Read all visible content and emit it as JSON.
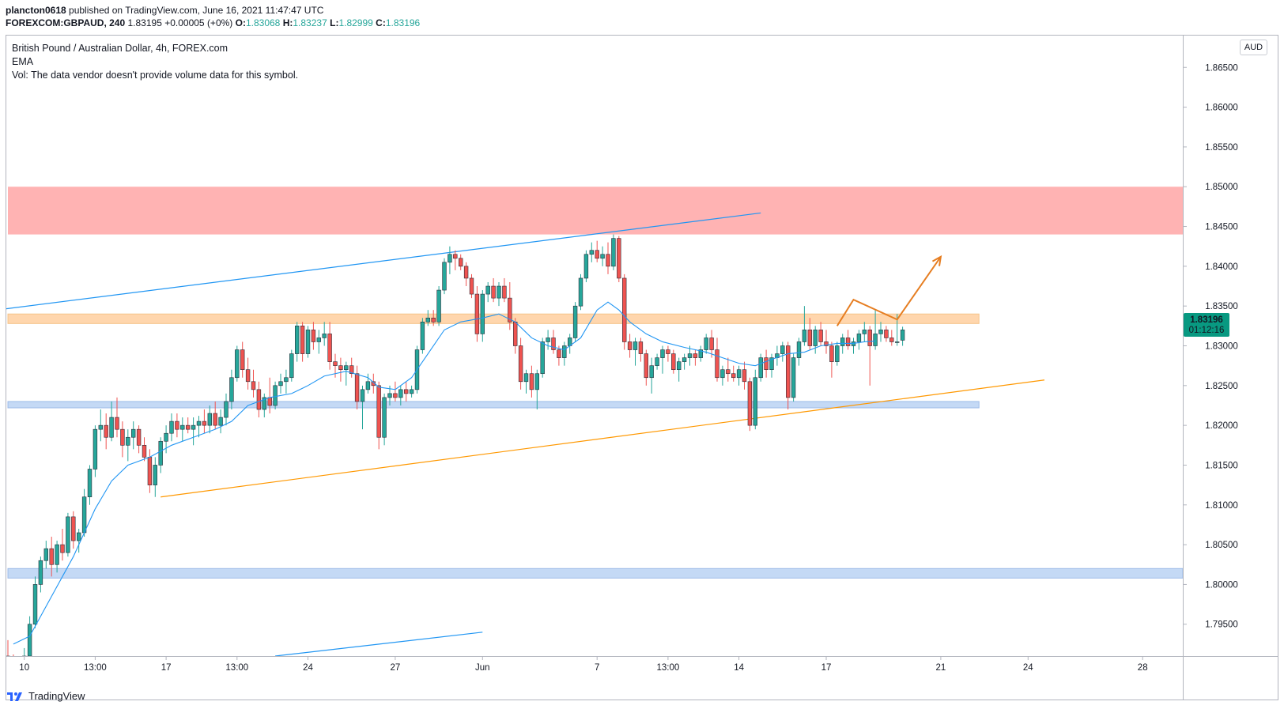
{
  "publish_line": {
    "user": "plancton0618",
    "text": " published on TradingView.com, June 16, 2021 11:47:47 UTC"
  },
  "ohlc": {
    "symbol": "FOREXCOM:GBPAUD, 240",
    "last": "1.83195",
    "change": "+0.00005 (+0%)",
    "o_label": "O:",
    "o": "1.83068",
    "h_label": "H:",
    "h": "1.83237",
    "l_label": "L:",
    "l": "1.82999",
    "c_label": "C:",
    "c": "1.83196"
  },
  "legend": {
    "title": "British Pound / Australian Dollar, 4h, FOREX.com",
    "ema": "EMA",
    "vol": "Vol: The data vendor doesn't provide volume data for this symbol."
  },
  "currency_button": "AUD",
  "price_tag": {
    "price": "1.83196",
    "countdown": "01:12:16",
    "color": "#089981"
  },
  "footer": {
    "brand": "TradingView"
  },
  "colors": {
    "up": "#26a69a",
    "down": "#ef5350",
    "wick": "#5d606b",
    "ema": "#2196f3",
    "resistance_zone": "#ffb3b3",
    "pivot_zone": "#ffd6ad",
    "support_zone": "#c4d9f5",
    "trendline_blue": "#2196f3",
    "trendline_orange": "#ff9800",
    "projection": "#e67e22"
  },
  "chart_data": {
    "type": "candlestick",
    "symbol": "GBPAUD",
    "timeframe": "4h",
    "ylim": [
      1.791,
      1.869
    ],
    "yticks": [
      "1.86500",
      "1.86000",
      "1.85500",
      "1.85000",
      "1.84500",
      "1.84000",
      "1.83500",
      "1.83000",
      "1.82500",
      "1.82000",
      "1.81500",
      "1.81000",
      "1.80500",
      "1.80000",
      "1.79500"
    ],
    "xticks": [
      {
        "label": "10",
        "bar": 3
      },
      {
        "label": "13:00",
        "bar": 16
      },
      {
        "label": "17",
        "bar": 29
      },
      {
        "label": "13:00",
        "bar": 42
      },
      {
        "label": "24",
        "bar": 55
      },
      {
        "label": "27",
        "bar": 71
      },
      {
        "label": "Jun",
        "bar": 87
      },
      {
        "label": "7",
        "bar": 108
      },
      {
        "label": "13:00",
        "bar": 121
      },
      {
        "label": "14",
        "bar": 134
      },
      {
        "label": "17",
        "bar": 150
      },
      {
        "label": "21",
        "bar": 171
      },
      {
        "label": "24",
        "bar": 187
      },
      {
        "label": "28",
        "bar": 208
      }
    ],
    "candles": [
      [
        1.791,
        1.793,
        1.7895,
        1.79
      ],
      [
        1.79,
        1.7912,
        1.788,
        1.789
      ],
      [
        1.789,
        1.7905,
        1.788,
        1.79
      ],
      [
        1.79,
        1.792,
        1.789,
        1.791
      ],
      [
        1.791,
        1.796,
        1.7905,
        1.795
      ],
      [
        1.795,
        1.801,
        1.7945,
        1.8
      ],
      [
        1.8,
        1.8035,
        1.799,
        1.803
      ],
      [
        1.803,
        1.8055,
        1.802,
        1.8045
      ],
      [
        1.8045,
        1.806,
        1.801,
        1.8025
      ],
      [
        1.8025,
        1.8055,
        1.8015,
        1.805
      ],
      [
        1.805,
        1.807,
        1.803,
        1.804
      ],
      [
        1.804,
        1.809,
        1.8035,
        1.8085
      ],
      [
        1.8085,
        1.8092,
        1.8045,
        1.8055
      ],
      [
        1.8055,
        1.807,
        1.804,
        1.8065
      ],
      [
        1.8065,
        1.812,
        1.806,
        1.811
      ],
      [
        1.811,
        1.815,
        1.81,
        1.8145
      ],
      [
        1.8145,
        1.82,
        1.8135,
        1.8195
      ],
      [
        1.8195,
        1.822,
        1.818,
        1.82
      ],
      [
        1.82,
        1.8215,
        1.817,
        1.8185
      ],
      [
        1.8185,
        1.823,
        1.818,
        1.821
      ],
      [
        1.821,
        1.8235,
        1.8185,
        1.8195
      ],
      [
        1.8195,
        1.8205,
        1.816,
        1.8175
      ],
      [
        1.8175,
        1.8195,
        1.8155,
        1.8185
      ],
      [
        1.8185,
        1.8205,
        1.817,
        1.8195
      ],
      [
        1.8195,
        1.82,
        1.8165,
        1.8175
      ],
      [
        1.8175,
        1.8185,
        1.8155,
        1.816
      ],
      [
        1.816,
        1.817,
        1.8115,
        1.8125
      ],
      [
        1.8125,
        1.816,
        1.811,
        1.815
      ],
      [
        1.815,
        1.8185,
        1.814,
        1.818
      ],
      [
        1.818,
        1.82,
        1.8165,
        1.819
      ],
      [
        1.819,
        1.8215,
        1.818,
        1.8205
      ],
      [
        1.8205,
        1.8215,
        1.8185,
        1.8195
      ],
      [
        1.8195,
        1.821,
        1.818,
        1.82
      ],
      [
        1.82,
        1.821,
        1.819,
        1.8195
      ],
      [
        1.8195,
        1.821,
        1.8175,
        1.82
      ],
      [
        1.82,
        1.8212,
        1.8185,
        1.8205
      ],
      [
        1.8205,
        1.822,
        1.819,
        1.82
      ],
      [
        1.82,
        1.8225,
        1.819,
        1.8215
      ],
      [
        1.8215,
        1.823,
        1.8195,
        1.82
      ],
      [
        1.82,
        1.822,
        1.819,
        1.821
      ],
      [
        1.821,
        1.824,
        1.82,
        1.823
      ],
      [
        1.823,
        1.827,
        1.822,
        1.826
      ],
      [
        1.826,
        1.83,
        1.8255,
        1.8295
      ],
      [
        1.8295,
        1.8305,
        1.826,
        1.827
      ],
      [
        1.827,
        1.8285,
        1.8245,
        1.8255
      ],
      [
        1.8255,
        1.827,
        1.8235,
        1.8245
      ],
      [
        1.8245,
        1.8255,
        1.821,
        1.822
      ],
      [
        1.822,
        1.824,
        1.821,
        1.8235
      ],
      [
        1.8235,
        1.826,
        1.8215,
        1.8225
      ],
      [
        1.8225,
        1.8255,
        1.822,
        1.825
      ],
      [
        1.825,
        1.8265,
        1.824,
        1.8255
      ],
      [
        1.8255,
        1.827,
        1.824,
        1.826
      ],
      [
        1.826,
        1.8295,
        1.8255,
        1.829
      ],
      [
        1.829,
        1.833,
        1.828,
        1.8325
      ],
      [
        1.8325,
        1.833,
        1.828,
        1.829
      ],
      [
        1.829,
        1.8325,
        1.8285,
        1.832
      ],
      [
        1.832,
        1.833,
        1.8295,
        1.8305
      ],
      [
        1.8305,
        1.832,
        1.829,
        1.831
      ],
      [
        1.831,
        1.833,
        1.83,
        1.8315
      ],
      [
        1.8315,
        1.833,
        1.827,
        1.828
      ],
      [
        1.828,
        1.829,
        1.826,
        1.8275
      ],
      [
        1.8275,
        1.8285,
        1.8255,
        1.827
      ],
      [
        1.827,
        1.828,
        1.825,
        1.8275
      ],
      [
        1.8275,
        1.8285,
        1.826,
        1.8265
      ],
      [
        1.8265,
        1.8275,
        1.822,
        1.823
      ],
      [
        1.823,
        1.825,
        1.8195,
        1.8245
      ],
      [
        1.8245,
        1.8265,
        1.824,
        1.8255
      ],
      [
        1.8255,
        1.8265,
        1.824,
        1.825
      ],
      [
        1.825,
        1.8255,
        1.817,
        1.8185
      ],
      [
        1.8185,
        1.824,
        1.8175,
        1.8235
      ],
      [
        1.8235,
        1.825,
        1.8225,
        1.824
      ],
      [
        1.824,
        1.8255,
        1.823,
        1.8235
      ],
      [
        1.8235,
        1.825,
        1.8225,
        1.8245
      ],
      [
        1.8245,
        1.8255,
        1.823,
        1.824
      ],
      [
        1.824,
        1.825,
        1.8235,
        1.8245
      ],
      [
        1.8245,
        1.83,
        1.824,
        1.8295
      ],
      [
        1.8295,
        1.8335,
        1.829,
        1.833
      ],
      [
        1.833,
        1.8345,
        1.8325,
        1.8335
      ],
      [
        1.8335,
        1.8345,
        1.8325,
        1.833
      ],
      [
        1.833,
        1.8375,
        1.8325,
        1.837
      ],
      [
        1.837,
        1.841,
        1.8365,
        1.8405
      ],
      [
        1.8405,
        1.8425,
        1.839,
        1.8415
      ],
      [
        1.8415,
        1.842,
        1.8395,
        1.841
      ],
      [
        1.841,
        1.8415,
        1.8395,
        1.84
      ],
      [
        1.84,
        1.8405,
        1.8375,
        1.8385
      ],
      [
        1.8385,
        1.839,
        1.836,
        1.8365
      ],
      [
        1.8365,
        1.8375,
        1.8305,
        1.8315
      ],
      [
        1.8315,
        1.837,
        1.8305,
        1.8365
      ],
      [
        1.8365,
        1.838,
        1.8355,
        1.8375
      ],
      [
        1.8375,
        1.8385,
        1.8355,
        1.836
      ],
      [
        1.836,
        1.838,
        1.835,
        1.8375
      ],
      [
        1.8375,
        1.8385,
        1.8355,
        1.836
      ],
      [
        1.836,
        1.838,
        1.832,
        1.833
      ],
      [
        1.833,
        1.8335,
        1.829,
        1.83
      ],
      [
        1.83,
        1.831,
        1.8245,
        1.8255
      ],
      [
        1.8255,
        1.827,
        1.824,
        1.8265
      ],
      [
        1.8265,
        1.8275,
        1.8235,
        1.8245
      ],
      [
        1.8245,
        1.827,
        1.822,
        1.8265
      ],
      [
        1.8265,
        1.831,
        1.826,
        1.8305
      ],
      [
        1.8305,
        1.832,
        1.8295,
        1.831
      ],
      [
        1.831,
        1.832,
        1.829,
        1.8295
      ],
      [
        1.8295,
        1.83,
        1.8275,
        1.8285
      ],
      [
        1.8285,
        1.8305,
        1.8275,
        1.83
      ],
      [
        1.83,
        1.8315,
        1.829,
        1.831
      ],
      [
        1.831,
        1.8355,
        1.8305,
        1.835
      ],
      [
        1.835,
        1.839,
        1.8345,
        1.8385
      ],
      [
        1.8385,
        1.842,
        1.838,
        1.8415
      ],
      [
        1.8415,
        1.843,
        1.8405,
        1.842
      ],
      [
        1.842,
        1.8432,
        1.8405,
        1.841
      ],
      [
        1.841,
        1.8425,
        1.84,
        1.8415
      ],
      [
        1.8415,
        1.843,
        1.839,
        1.84
      ],
      [
        1.84,
        1.844,
        1.8395,
        1.8435
      ],
      [
        1.8435,
        1.8438,
        1.838,
        1.8385
      ],
      [
        1.8385,
        1.839,
        1.8295,
        1.8305
      ],
      [
        1.8305,
        1.8315,
        1.8285,
        1.8295
      ],
      [
        1.8295,
        1.831,
        1.8275,
        1.8305
      ],
      [
        1.8305,
        1.831,
        1.828,
        1.829
      ],
      [
        1.829,
        1.8295,
        1.825,
        1.826
      ],
      [
        1.826,
        1.8285,
        1.824,
        1.8275
      ],
      [
        1.8275,
        1.829,
        1.827,
        1.8285
      ],
      [
        1.8285,
        1.83,
        1.8265,
        1.8295
      ],
      [
        1.8295,
        1.83,
        1.828,
        1.829
      ],
      [
        1.829,
        1.8295,
        1.8265,
        1.827
      ],
      [
        1.827,
        1.8285,
        1.8255,
        1.828
      ],
      [
        1.828,
        1.829,
        1.827,
        1.8285
      ],
      [
        1.8285,
        1.83,
        1.8275,
        1.829
      ],
      [
        1.829,
        1.8295,
        1.8275,
        1.8285
      ],
      [
        1.8285,
        1.83,
        1.828,
        1.8295
      ],
      [
        1.8295,
        1.8315,
        1.829,
        1.831
      ],
      [
        1.831,
        1.832,
        1.8285,
        1.8295
      ],
      [
        1.8295,
        1.831,
        1.8255,
        1.826
      ],
      [
        1.826,
        1.8275,
        1.825,
        1.827
      ],
      [
        1.827,
        1.8285,
        1.8255,
        1.8265
      ],
      [
        1.8265,
        1.8275,
        1.8255,
        1.826
      ],
      [
        1.826,
        1.8275,
        1.825,
        1.827
      ],
      [
        1.827,
        1.828,
        1.8245,
        1.8255
      ],
      [
        1.8255,
        1.826,
        1.8193,
        1.82
      ],
      [
        1.82,
        1.827,
        1.8195,
        1.826
      ],
      [
        1.826,
        1.829,
        1.8255,
        1.8285
      ],
      [
        1.8285,
        1.8295,
        1.826,
        1.827
      ],
      [
        1.827,
        1.829,
        1.826,
        1.8285
      ],
      [
        1.8285,
        1.83,
        1.8275,
        1.829
      ],
      [
        1.829,
        1.8305,
        1.828,
        1.83
      ],
      [
        1.83,
        1.8305,
        1.822,
        1.8235
      ],
      [
        1.8235,
        1.829,
        1.823,
        1.8285
      ],
      [
        1.8285,
        1.831,
        1.8275,
        1.8305
      ],
      [
        1.8305,
        1.835,
        1.83,
        1.832
      ],
      [
        1.832,
        1.8335,
        1.8295,
        1.83
      ],
      [
        1.83,
        1.8325,
        1.829,
        1.832
      ],
      [
        1.832,
        1.833,
        1.83,
        1.8305
      ],
      [
        1.8305,
        1.832,
        1.829,
        1.83
      ],
      [
        1.83,
        1.8305,
        1.826,
        1.828
      ],
      [
        1.828,
        1.8305,
        1.8275,
        1.83
      ],
      [
        1.83,
        1.8315,
        1.829,
        1.831
      ],
      [
        1.831,
        1.832,
        1.8295,
        1.83
      ],
      [
        1.83,
        1.831,
        1.829,
        1.8305
      ],
      [
        1.8305,
        1.832,
        1.8295,
        1.8315
      ],
      [
        1.8315,
        1.833,
        1.8305,
        1.832
      ],
      [
        1.832,
        1.8325,
        1.825,
        1.83
      ],
      [
        1.83,
        1.8345,
        1.8295,
        1.8315
      ],
      [
        1.8315,
        1.833,
        1.8305,
        1.832
      ],
      [
        1.832,
        1.8325,
        1.8305,
        1.831
      ],
      [
        1.831,
        1.832,
        1.83,
        1.8305
      ],
      [
        1.8305,
        1.834,
        1.83,
        1.8305
      ],
      [
        1.8307,
        1.8324,
        1.83,
        1.832
      ]
    ],
    "ema": [
      [
        1,
        1.7925
      ],
      [
        4,
        1.7935
      ],
      [
        8,
        1.7985
      ],
      [
        12,
        1.8035
      ],
      [
        16,
        1.8095
      ],
      [
        19,
        1.813
      ],
      [
        22,
        1.815
      ],
      [
        26,
        1.816
      ],
      [
        30,
        1.8175
      ],
      [
        34,
        1.8185
      ],
      [
        38,
        1.8195
      ],
      [
        41,
        1.8205
      ],
      [
        44,
        1.8225
      ],
      [
        48,
        1.8235
      ],
      [
        52,
        1.824
      ],
      [
        55,
        1.825
      ],
      [
        58,
        1.8262
      ],
      [
        62,
        1.8268
      ],
      [
        66,
        1.826
      ],
      [
        68,
        1.8248
      ],
      [
        71,
        1.8245
      ],
      [
        74,
        1.826
      ],
      [
        77,
        1.829
      ],
      [
        80,
        1.832
      ],
      [
        83,
        1.833
      ],
      [
        87,
        1.8335
      ],
      [
        90,
        1.834
      ],
      [
        93,
        1.833
      ],
      [
        96,
        1.831
      ],
      [
        99,
        1.83
      ],
      [
        102,
        1.8295
      ],
      [
        105,
        1.831
      ],
      [
        108,
        1.8345
      ],
      [
        110,
        1.8355
      ],
      [
        112,
        1.8345
      ],
      [
        114,
        1.833
      ],
      [
        117,
        1.8315
      ],
      [
        120,
        1.8305
      ],
      [
        124,
        1.8298
      ],
      [
        128,
        1.8292
      ],
      [
        131,
        1.8285
      ],
      [
        134,
        1.8278
      ],
      [
        137,
        1.8275
      ],
      [
        140,
        1.8283
      ],
      [
        143,
        1.829
      ],
      [
        146,
        1.8292
      ],
      [
        149,
        1.83
      ],
      [
        152,
        1.8303
      ],
      [
        155,
        1.8303
      ],
      [
        157,
        1.8305
      ],
      [
        159,
        1.8306
      ]
    ],
    "zones": [
      {
        "name": "resistance",
        "y1": 1.844,
        "y2": 1.85,
        "bar_start": 0,
        "bar_end": 999
      },
      {
        "name": "pivot",
        "y1": 1.8328,
        "y2": 1.834,
        "bar_start": 0,
        "bar_end": 178
      },
      {
        "name": "support",
        "y1": 1.8222,
        "y2": 1.823,
        "bar_start": 0,
        "bar_end": 178
      },
      {
        "name": "support-low",
        "y1": 1.8008,
        "y2": 1.802,
        "bar_start": 0,
        "bar_end": 999
      }
    ],
    "trendlines": [
      {
        "name": "upper-channel",
        "color": "#2196f3",
        "points": [
          [
            -1,
            1.8346
          ],
          [
            138,
            1.8467
          ]
        ]
      },
      {
        "name": "lower-channel",
        "color": "#2196f3",
        "points": [
          [
            49,
            1.791
          ],
          [
            87,
            1.794
          ]
        ]
      },
      {
        "name": "ascending-support",
        "color": "#ff9800",
        "points": [
          [
            28,
            1.811
          ],
          [
            190,
            1.8257
          ]
        ]
      }
    ],
    "projection": {
      "color": "#e67e22",
      "points": [
        [
          152,
          1.8325
        ],
        [
          155,
          1.8358
        ],
        [
          163,
          1.8333
        ],
        [
          171,
          1.8412
        ]
      ]
    }
  }
}
